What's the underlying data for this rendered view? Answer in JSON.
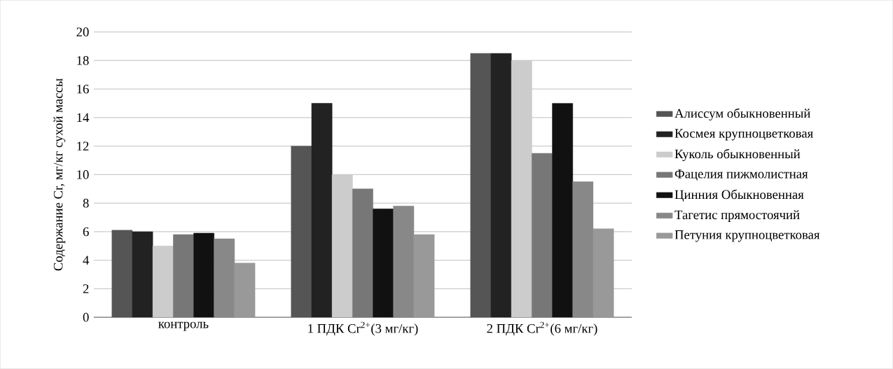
{
  "chart_data": {
    "type": "bar",
    "ylabel": "Содержание Cr, мг/кг сухой массы",
    "categories": [
      "контроль",
      "1 ПДК Cr$^{2+}$(3 мг/кг)",
      "2 ПДК Cr$^{2+}$(6 мг/кг)"
    ],
    "series": [
      {
        "name": "Алиссум обыкновенный",
        "color": "#555555",
        "values": [
          6.1,
          12,
          18.5
        ]
      },
      {
        "name": "Космея крупноцветковая",
        "color": "#222222",
        "values": [
          6.0,
          15,
          18.5
        ]
      },
      {
        "name": "Куколь обыкновенный",
        "color": "#cccccc",
        "values": [
          5.0,
          10,
          18
        ]
      },
      {
        "name": "Фацелия пижмолистная",
        "color": "#777777",
        "values": [
          5.8,
          9,
          11.5
        ]
      },
      {
        "name": "Цинния Обыкновенная",
        "color": "#111111",
        "values": [
          5.9,
          7.6,
          15
        ]
      },
      {
        "name": "Тагетис прямостоячий",
        "color": "#888888",
        "values": [
          5.5,
          7.8,
          9.5
        ]
      },
      {
        "name": "Петуния крупноцветковая",
        "color": "#999999",
        "values": [
          3.8,
          5.8,
          6.2
        ]
      }
    ],
    "ylim": [
      0,
      20
    ],
    "yticks": [
      0,
      2,
      4,
      6,
      8,
      10,
      12,
      14,
      16,
      18,
      20
    ],
    "grid": "y",
    "legend": "right"
  }
}
